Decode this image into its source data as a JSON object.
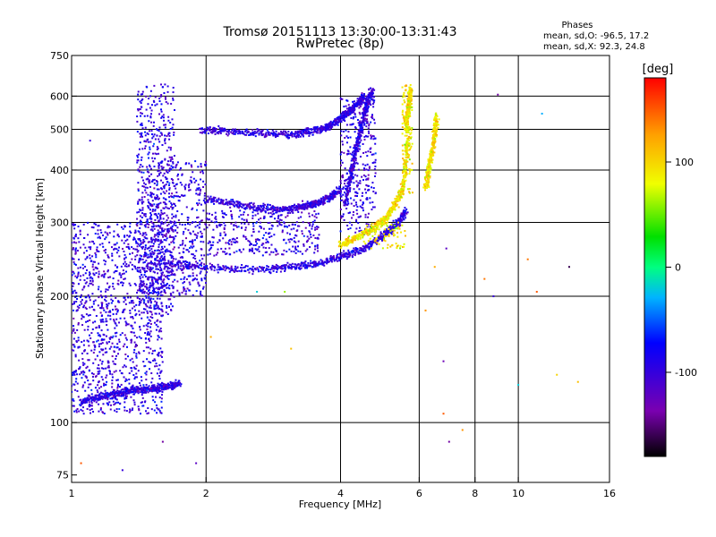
{
  "chart_data": {
    "type": "scatter",
    "title": "Tromsø 20151113 13:30:00-13:31:43",
    "subtitle": "RwPretec (8p)",
    "xlabel": "Frequency [MHz]",
    "ylabel": "Stationary phase Virtual Height [km]",
    "x_scale": "log",
    "y_scale": "log",
    "xlim": [
      1,
      16
    ],
    "ylim": [
      72,
      750
    ],
    "x_ticks": [
      1,
      2,
      4,
      6,
      8,
      10,
      16
    ],
    "x_tick_labels": [
      "1",
      "2",
      "4",
      "6",
      "8",
      "10",
      "16"
    ],
    "y_ticks": [
      75,
      100,
      200,
      300,
      400,
      500,
      600,
      750
    ],
    "y_tick_labels": [
      "75",
      "100",
      "200",
      "300",
      "400",
      "500",
      "600",
      "750"
    ],
    "grid_x": [
      2,
      4,
      6,
      8,
      10
    ],
    "grid_y": [
      100,
      200,
      300,
      400,
      500,
      600
    ],
    "legend_header": "Phases",
    "legend_lines": [
      "mean, sd,O: -96.5, 17.2",
      "mean, sd,X: 92.3, 24.8"
    ],
    "colorbar": {
      "label": "[deg]",
      "range": [
        -180,
        180
      ],
      "tick_values": [
        100,
        0,
        -100
      ],
      "tick_labels": [
        "100",
        "0",
        "-100"
      ]
    },
    "series": [
      {
        "id": "o_mode",
        "phase_deg": -96.5,
        "traces": [
          {
            "f": [
              1.6,
              1.9,
              2.3,
              2.8,
              3.2,
              3.6,
              4.0,
              4.4,
              4.8,
              5.1,
              5.4,
              5.6
            ],
            "h": [
              240,
              235,
              232,
              232,
              235,
              240,
              248,
              258,
              270,
              285,
              300,
              320
            ]
          },
          {
            "f": [
              1.95,
              2.2,
              2.6,
              3.0,
              3.3,
              3.6,
              3.8,
              4.0,
              4.2,
              4.4,
              4.5
            ],
            "h": [
              500,
              495,
              488,
              484,
              490,
              500,
              510,
              530,
              555,
              580,
              600
            ]
          },
          {
            "f": [
              2.0,
              2.3,
              2.6,
              2.9,
              3.2,
              3.4,
              3.6,
              3.8,
              4.0
            ],
            "h": [
              340,
              332,
              325,
              322,
              325,
              330,
              335,
              345,
              360
            ]
          },
          {
            "f": [
              4.1,
              4.2,
              4.3,
              4.4,
              4.5,
              4.6,
              4.7
            ],
            "h": [
              330,
              380,
              430,
              480,
              530,
              580,
              620
            ]
          },
          {
            "f": [
              1.05,
              1.15,
              1.25,
              1.35,
              1.45,
              1.55,
              1.65,
              1.75
            ],
            "h": [
              112,
              115,
              117,
              119,
              120,
              121,
              122,
              124
            ]
          }
        ],
        "regions": [
          {
            "f": [
              1.4,
              1.7
            ],
            "h": [
              180,
              640
            ]
          },
          {
            "f": [
              1.0,
              1.6
            ],
            "h": [
              105,
              300
            ]
          },
          {
            "f": [
              1.5,
              2.0
            ],
            "h": [
              200,
              420
            ]
          },
          {
            "f": [
              2.0,
              3.6
            ],
            "h": [
              250,
              320
            ]
          },
          {
            "f": [
              4.0,
              4.8
            ],
            "h": [
              280,
              600
            ]
          }
        ]
      },
      {
        "id": "x_mode",
        "phase_deg": 92.3,
        "traces": [
          {
            "f": [
              4.0,
              4.3,
              4.6,
              4.9,
              5.1,
              5.3,
              5.5,
              5.6,
              5.7
            ],
            "h": [
              265,
              275,
              285,
              298,
              310,
              330,
              360,
              420,
              500
            ]
          },
          {
            "f": [
              5.6,
              5.65,
              5.7,
              5.75
            ],
            "h": [
              500,
              540,
              580,
              630
            ]
          },
          {
            "f": [
              6.2,
              6.3,
              6.4,
              6.5,
              6.55
            ],
            "h": [
              360,
              400,
              440,
              490,
              540
            ]
          }
        ],
        "regions": [
          {
            "f": [
              5.5,
              5.8
            ],
            "h": [
              350,
              640
            ]
          },
          {
            "f": [
              4.5,
              5.6
            ],
            "h": [
              260,
              300
            ]
          }
        ]
      }
    ],
    "isolated_points": [
      {
        "f": 1.05,
        "h": 80,
        "phase": 150
      },
      {
        "f": 1.3,
        "h": 77,
        "phase": -100
      },
      {
        "f": 1.6,
        "h": 90,
        "phase": -140
      },
      {
        "f": 1.9,
        "h": 80,
        "phase": -120
      },
      {
        "f": 6.5,
        "h": 235,
        "phase": 120
      },
      {
        "f": 6.9,
        "h": 260,
        "phase": -120
      },
      {
        "f": 6.8,
        "h": 140,
        "phase": -130
      },
      {
        "f": 6.8,
        "h": 105,
        "phase": 150
      },
      {
        "f": 7.5,
        "h": 96,
        "phase": 130
      },
      {
        "f": 7.0,
        "h": 90,
        "phase": -140
      },
      {
        "f": 6.2,
        "h": 185,
        "phase": 130
      },
      {
        "f": 8.4,
        "h": 220,
        "phase": 140
      },
      {
        "f": 8.8,
        "h": 200,
        "phase": -100
      },
      {
        "f": 9.0,
        "h": 605,
        "phase": -140
      },
      {
        "f": 10.0,
        "h": 123,
        "phase": -20
      },
      {
        "f": 10.5,
        "h": 245,
        "phase": 140
      },
      {
        "f": 11.0,
        "h": 205,
        "phase": 150
      },
      {
        "f": 11.3,
        "h": 545,
        "phase": -30
      },
      {
        "f": 12.2,
        "h": 130,
        "phase": 100
      },
      {
        "f": 13.0,
        "h": 235,
        "phase": -160
      },
      {
        "f": 13.6,
        "h": 125,
        "phase": 110
      },
      {
        "f": 1.1,
        "h": 470,
        "phase": -100
      },
      {
        "f": 3.0,
        "h": 205,
        "phase": 60
      },
      {
        "f": 3.1,
        "h": 150,
        "phase": 110
      },
      {
        "f": 2.6,
        "h": 205,
        "phase": -20
      },
      {
        "f": 2.05,
        "h": 160,
        "phase": 120
      }
    ]
  }
}
